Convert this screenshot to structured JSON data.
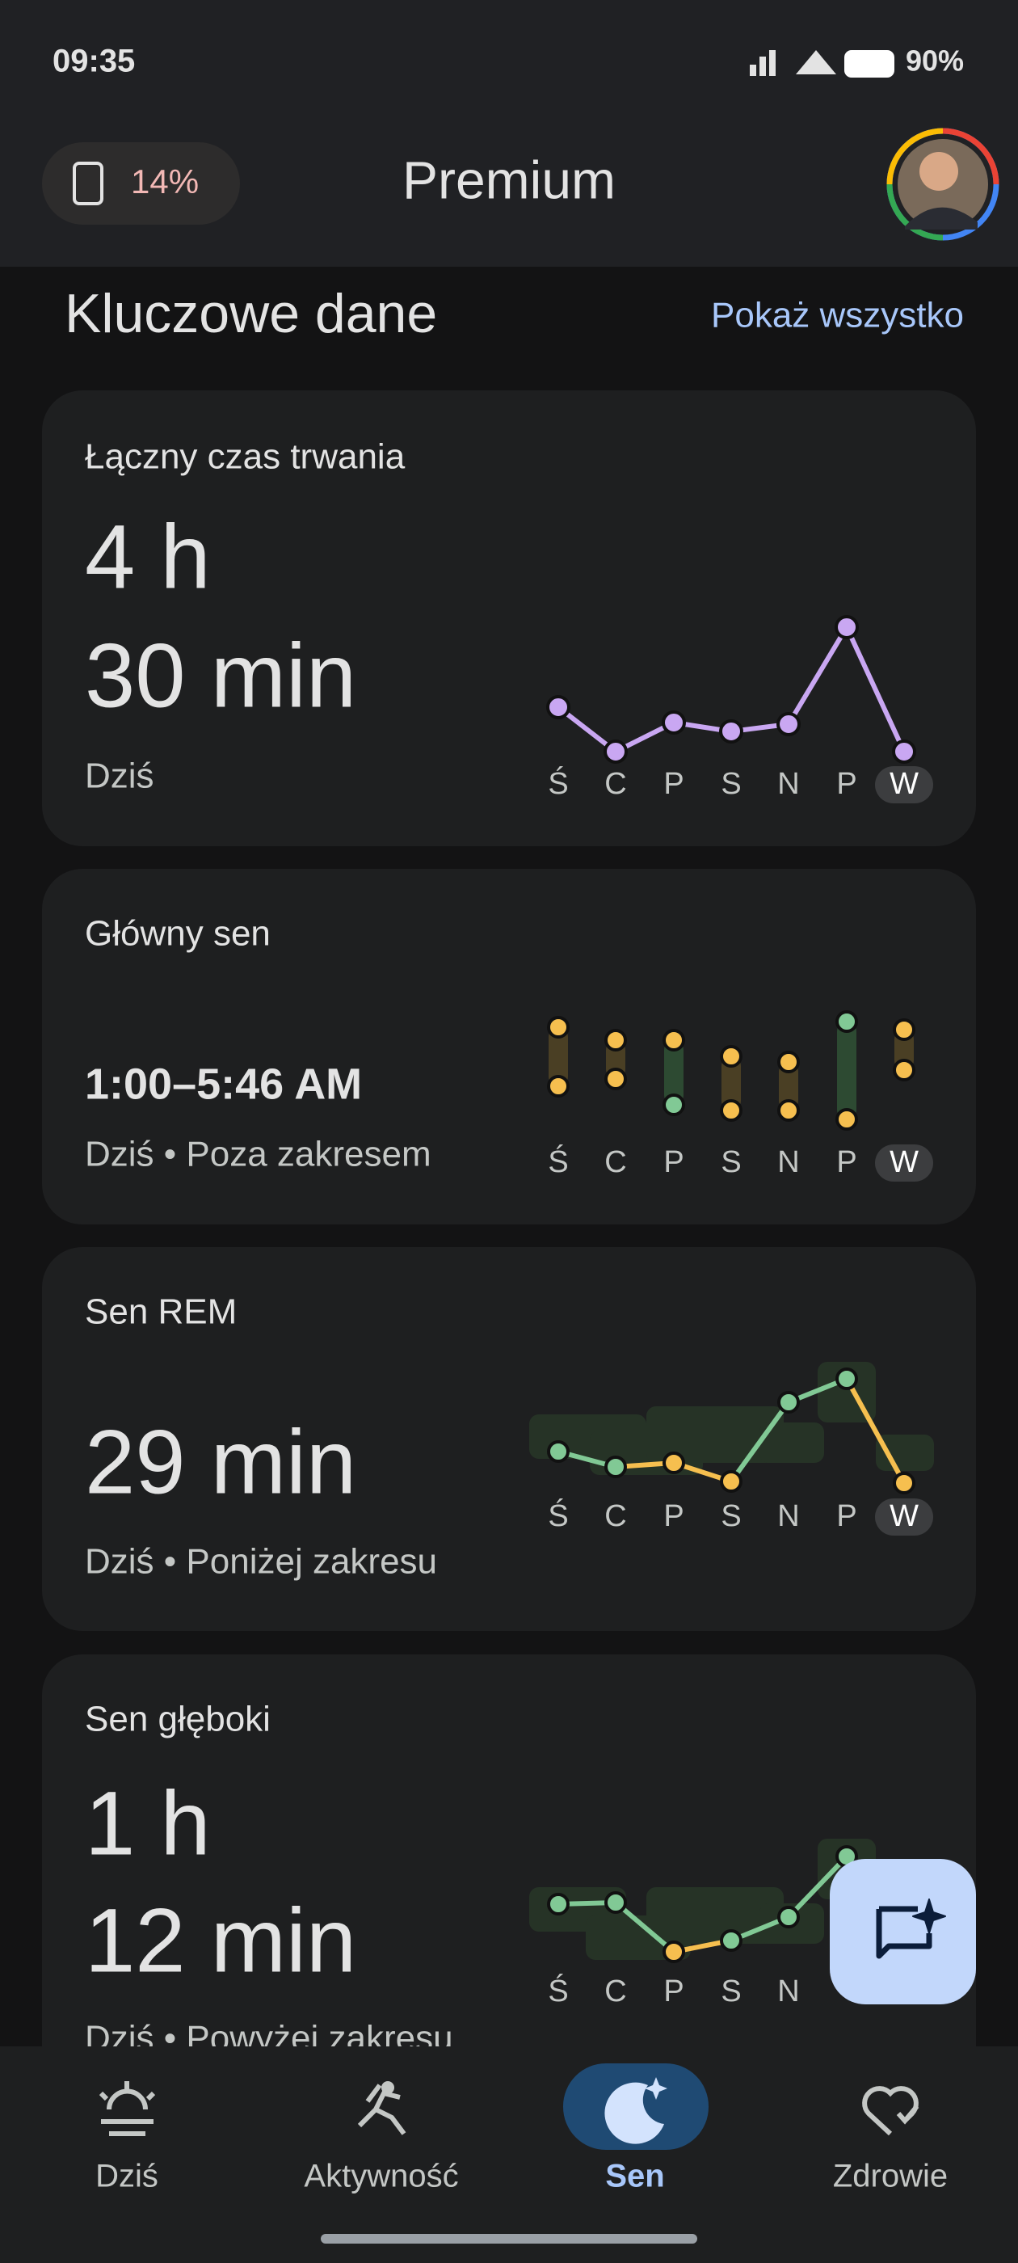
{
  "status_bar": {
    "time": "09:35",
    "battery": "90%"
  },
  "header": {
    "battery_pill": "14%",
    "title": "Premium"
  },
  "section": {
    "title": "Kluczowe dane",
    "link": "Pokaż wszystko"
  },
  "days": [
    "Ś",
    "C",
    "P",
    "S",
    "N",
    "P",
    "W"
  ],
  "cards": [
    {
      "title": "Łączny czas trwania",
      "value_lines": [
        "4 h",
        "30 min"
      ],
      "subtitle": "Dziś"
    },
    {
      "title": "Główny sen",
      "value_lines": [
        "1:00–5:46 AM"
      ],
      "subtitle": "Dziś • Poza zakresem"
    },
    {
      "title": "Sen REM",
      "value_lines": [
        "29 min"
      ],
      "subtitle": "Dziś • Poniżej zakresu"
    },
    {
      "title": "Sen głęboki",
      "value_lines": [
        "1 h",
        "12 min"
      ],
      "subtitle": "Dziś • Powyżej zakresu"
    }
  ],
  "nav": [
    "Dziś",
    "Aktywność",
    "Sen",
    "Zdrowie"
  ]
}
